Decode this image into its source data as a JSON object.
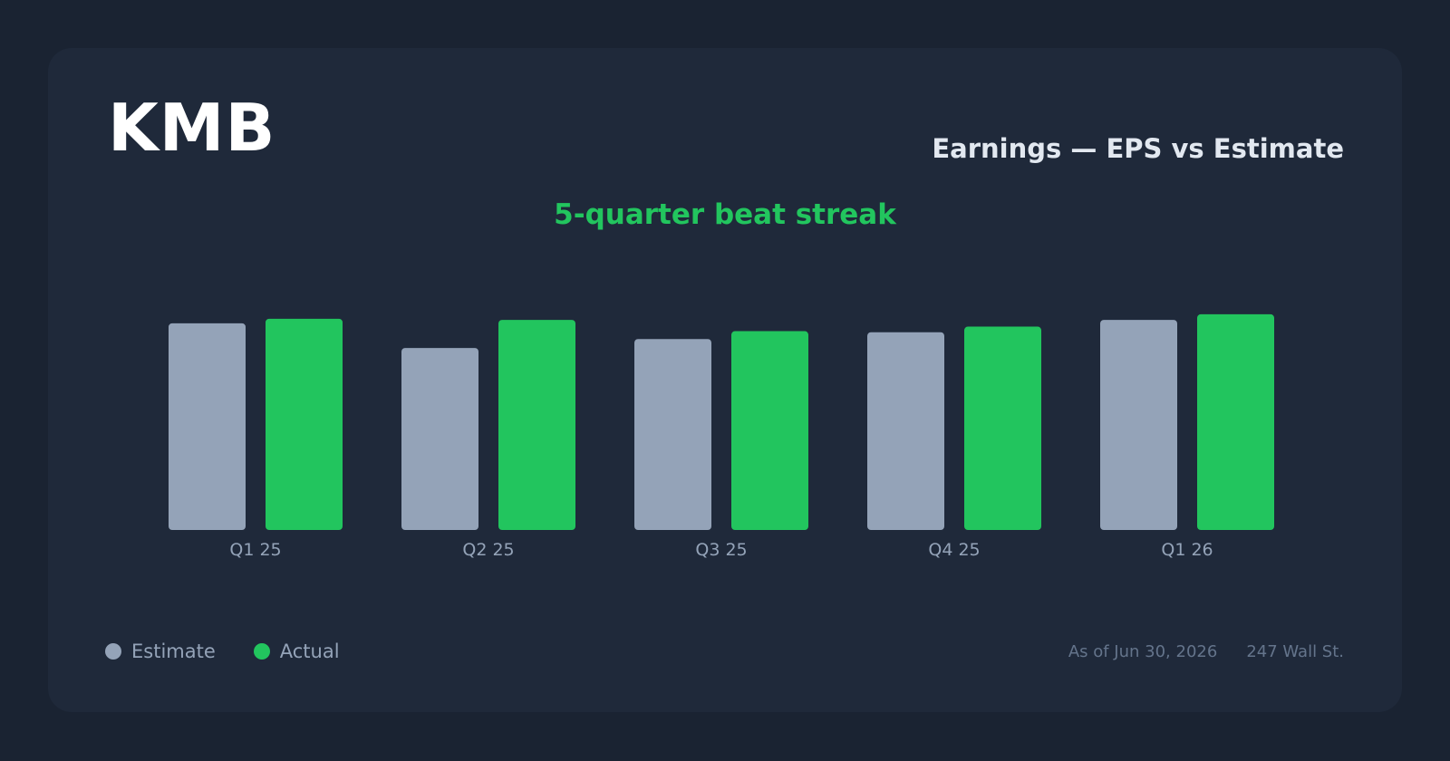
{
  "ticker": "KMB",
  "header": {
    "title": "Earnings — EPS vs Estimate",
    "subtitle": "5-quarter beat streak"
  },
  "footer": {
    "as_of": "As of Jun 30, 2026",
    "source": "247 Wall St."
  },
  "colors": {
    "estimate": "#94a3b8",
    "actual": "#22c55e",
    "subtitle": "#22c55e"
  },
  "chart_data": {
    "type": "bar",
    "categories": [
      "Q1 25",
      "Q2 25",
      "Q3 25",
      "Q4 25",
      "Q1 26"
    ],
    "series": [
      {
        "name": "Estimate",
        "values": [
          1.84,
          1.62,
          1.7,
          1.76,
          1.87
        ]
      },
      {
        "name": "Actual",
        "values": [
          1.88,
          1.87,
          1.77,
          1.81,
          1.92
        ]
      }
    ],
    "ylim": [
      0,
      2.0
    ],
    "grid": false,
    "legend": "bottom-left",
    "title": "Earnings — EPS vs Estimate",
    "subtitle": "5-quarter beat streak",
    "xlabel": "",
    "ylabel": ""
  }
}
